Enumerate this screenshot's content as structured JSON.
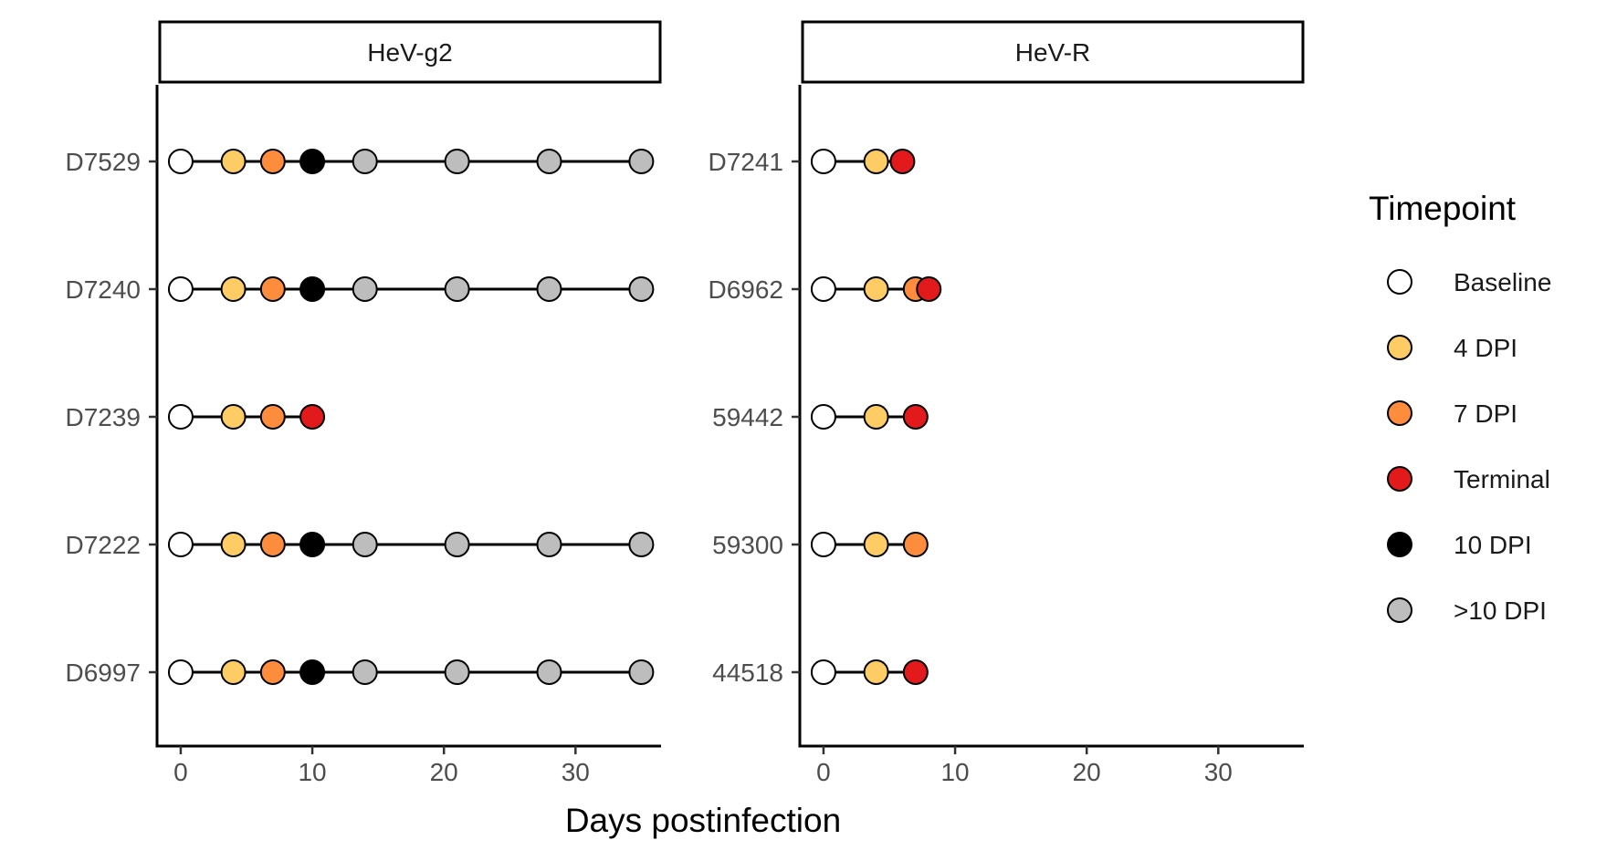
{
  "chart_data": {
    "type": "scatter",
    "xlabel": "Days postinfection",
    "xlim": [
      -1.8,
      36.5
    ],
    "xticks": [
      0,
      10,
      20,
      30
    ],
    "legend": {
      "title": "Timepoint",
      "placement": "right",
      "entries": [
        {
          "key": "baseline",
          "label": "Baseline",
          "color": "#ffffff"
        },
        {
          "key": "dpi4",
          "label": "4 DPI",
          "color": "#fdcc64"
        },
        {
          "key": "dpi7",
          "label": "7 DPI",
          "color": "#fd8d3c"
        },
        {
          "key": "terminal",
          "label": "Terminal",
          "color": "#e31a1c"
        },
        {
          "key": "dpi10",
          "label": "10 DPI",
          "color": "#000000"
        },
        {
          "key": "gt10",
          "label": ">10 DPI",
          "color": "#bdbdbd"
        }
      ]
    },
    "panels": [
      {
        "strip": "HeV-g2",
        "subjects": [
          {
            "id": "D7529",
            "points": [
              {
                "x": 0,
                "tp": "baseline"
              },
              {
                "x": 4,
                "tp": "dpi4"
              },
              {
                "x": 7,
                "tp": "dpi7"
              },
              {
                "x": 10,
                "tp": "dpi10"
              },
              {
                "x": 14,
                "tp": "gt10"
              },
              {
                "x": 21,
                "tp": "gt10"
              },
              {
                "x": 28,
                "tp": "gt10"
              },
              {
                "x": 35,
                "tp": "gt10"
              }
            ]
          },
          {
            "id": "D7240",
            "points": [
              {
                "x": 0,
                "tp": "baseline"
              },
              {
                "x": 4,
                "tp": "dpi4"
              },
              {
                "x": 7,
                "tp": "dpi7"
              },
              {
                "x": 10,
                "tp": "dpi10"
              },
              {
                "x": 14,
                "tp": "gt10"
              },
              {
                "x": 21,
                "tp": "gt10"
              },
              {
                "x": 28,
                "tp": "gt10"
              },
              {
                "x": 35,
                "tp": "gt10"
              }
            ]
          },
          {
            "id": "D7239",
            "points": [
              {
                "x": 0,
                "tp": "baseline"
              },
              {
                "x": 4,
                "tp": "dpi4"
              },
              {
                "x": 7,
                "tp": "dpi7"
              },
              {
                "x": 10,
                "tp": "terminal"
              }
            ]
          },
          {
            "id": "D7222",
            "points": [
              {
                "x": 0,
                "tp": "baseline"
              },
              {
                "x": 4,
                "tp": "dpi4"
              },
              {
                "x": 7,
                "tp": "dpi7"
              },
              {
                "x": 10,
                "tp": "dpi10"
              },
              {
                "x": 14,
                "tp": "gt10"
              },
              {
                "x": 21,
                "tp": "gt10"
              },
              {
                "x": 28,
                "tp": "gt10"
              },
              {
                "x": 35,
                "tp": "gt10"
              }
            ]
          },
          {
            "id": "D6997",
            "points": [
              {
                "x": 0,
                "tp": "baseline"
              },
              {
                "x": 4,
                "tp": "dpi4"
              },
              {
                "x": 7,
                "tp": "dpi7"
              },
              {
                "x": 10,
                "tp": "dpi10"
              },
              {
                "x": 14,
                "tp": "gt10"
              },
              {
                "x": 21,
                "tp": "gt10"
              },
              {
                "x": 28,
                "tp": "gt10"
              },
              {
                "x": 35,
                "tp": "gt10"
              }
            ]
          }
        ]
      },
      {
        "strip": "HeV-R",
        "subjects": [
          {
            "id": "D7241",
            "points": [
              {
                "x": 0,
                "tp": "baseline"
              },
              {
                "x": 4,
                "tp": "dpi4"
              },
              {
                "x": 6,
                "tp": "terminal"
              }
            ]
          },
          {
            "id": "D6962",
            "points": [
              {
                "x": 0,
                "tp": "baseline"
              },
              {
                "x": 4,
                "tp": "dpi4"
              },
              {
                "x": 7,
                "tp": "dpi7"
              },
              {
                "x": 8,
                "tp": "terminal"
              }
            ]
          },
          {
            "id": "59442",
            "points": [
              {
                "x": 0,
                "tp": "baseline"
              },
              {
                "x": 4,
                "tp": "dpi4"
              },
              {
                "x": 7,
                "tp": "terminal"
              }
            ]
          },
          {
            "id": "59300",
            "points": [
              {
                "x": 0,
                "tp": "baseline"
              },
              {
                "x": 4,
                "tp": "dpi4"
              },
              {
                "x": 7,
                "tp": "dpi7"
              }
            ]
          },
          {
            "id": "44518",
            "points": [
              {
                "x": 0,
                "tp": "baseline"
              },
              {
                "x": 4,
                "tp": "dpi4"
              },
              {
                "x": 7,
                "tp": "terminal"
              }
            ]
          }
        ]
      }
    ]
  }
}
